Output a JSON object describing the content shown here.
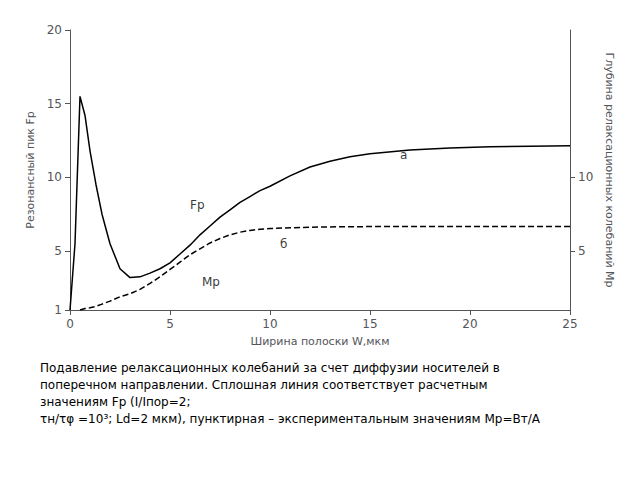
{
  "chart_data": {
    "type": "line",
    "xlabel": "Ширина полоски W,мкм",
    "ylabel": "Резонансный пик Fp",
    "y2label": "Глубина релаксационных колебаний Mp",
    "xlim": [
      0,
      25
    ],
    "xticks": [
      0,
      5,
      10,
      15,
      20,
      25
    ],
    "ylim": [
      1,
      20
    ],
    "yticks": [
      1,
      5,
      10,
      15,
      20
    ],
    "y2lim": [
      1,
      20
    ],
    "y2ticks": [
      5,
      10
    ],
    "grid": false,
    "series": [
      {
        "color": "#000000",
        "line_style": "solid",
        "x": [
          0.0,
          0.25,
          0.5,
          0.75,
          1.0,
          1.3,
          1.6,
          2.0,
          2.5,
          3.0,
          3.5,
          4.0,
          4.5,
          5.0,
          5.5,
          6.0,
          6.5,
          7.0,
          7.5,
          8.0,
          8.5,
          9.0,
          9.5,
          10.0,
          11.0,
          12.0,
          13.0,
          14.0,
          15.0,
          17.0,
          19.0,
          21.0,
          23.0,
          25.0
        ],
        "values": [
          1.0,
          5.5,
          15.5,
          14.2,
          11.8,
          9.5,
          7.5,
          5.5,
          3.8,
          3.2,
          3.25,
          3.5,
          3.8,
          4.2,
          4.8,
          5.4,
          6.1,
          6.7,
          7.3,
          7.8,
          8.3,
          8.7,
          9.1,
          9.4,
          10.1,
          10.7,
          11.1,
          11.4,
          11.6,
          11.85,
          12.0,
          12.08,
          12.12,
          12.15
        ]
      },
      {
        "color": "#000000",
        "line_style": "dashed",
        "x": [
          0.5,
          0.75,
          1.0,
          1.3,
          1.6,
          2.0,
          2.5,
          3.0,
          3.5,
          4.0,
          4.5,
          5.0,
          5.5,
          6.0,
          6.5,
          7.0,
          7.5,
          8.0,
          8.5,
          9.0,
          9.5,
          10.0,
          11.0,
          12.0,
          13.0,
          14.0,
          15.0,
          17.0,
          19.0,
          21.0,
          23.0,
          25.0
        ],
        "values": [
          1.0,
          1.1,
          1.15,
          1.25,
          1.4,
          1.6,
          1.9,
          2.1,
          2.4,
          2.8,
          3.25,
          3.75,
          4.25,
          4.75,
          5.15,
          5.55,
          5.85,
          6.1,
          6.28,
          6.4,
          6.48,
          6.53,
          6.58,
          6.62,
          6.64,
          6.65,
          6.66,
          6.67,
          6.67,
          6.67,
          6.67,
          6.67
        ]
      }
    ],
    "annotations": [
      {
        "text": "а",
        "x": 16.5,
        "y": 11.5
      },
      {
        "text": "б",
        "x": 10.5,
        "y": 5.5
      },
      {
        "text": "Fp",
        "x": 6.0,
        "y": 8.1
      },
      {
        "text": "Mp",
        "x": 6.6,
        "y": 2.9
      }
    ],
    "caption": [
      "Подавление релаксационных колебаний за счет диффузии носителей в",
      "поперечном направлении. Сплошная линия соответствует расчетным",
      "значениям Fр (I/Iпор=2;",
      "τн/τφ =10³; Ld=2 мкм), пунктирная – экспериментальным значениям Mp=Вт/А"
    ]
  }
}
